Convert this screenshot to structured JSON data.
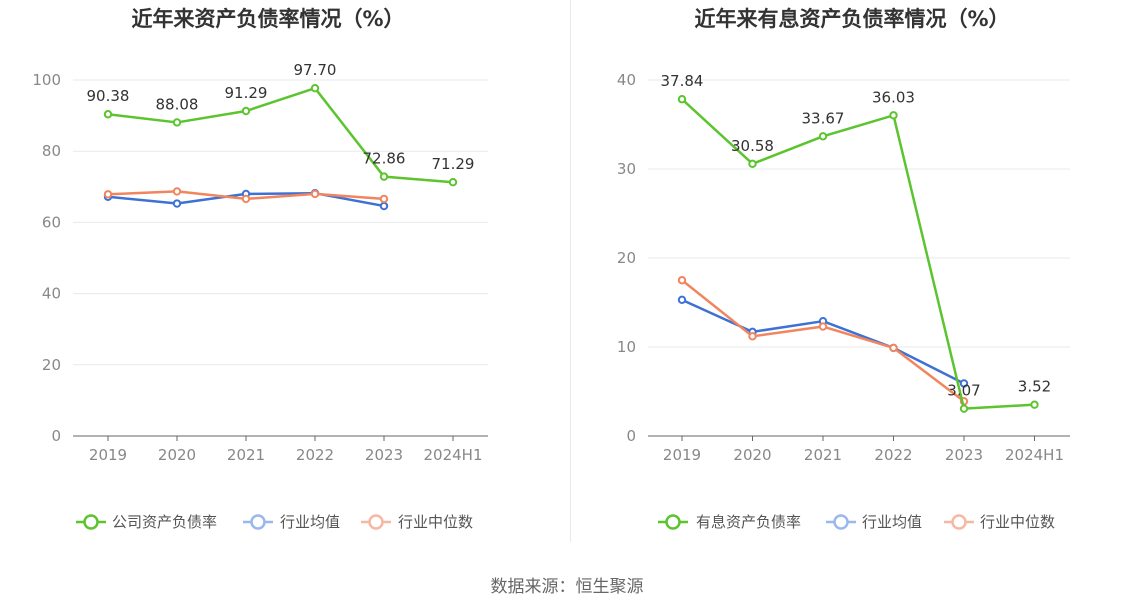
{
  "source": "数据来源：恒生聚源",
  "colors": {
    "main": "#5cc42e",
    "avg": "#3d71d4",
    "median": "#f0855e",
    "avg_legend": "#9ab8ee",
    "median_legend": "#f6b8a2"
  },
  "chart_data": [
    {
      "type": "line",
      "title": "近年来资产负债率情况（%）",
      "categories": [
        "2019",
        "2020",
        "2021",
        "2022",
        "2023",
        "2024H1"
      ],
      "ylim": [
        0,
        100
      ],
      "yticks": [
        "0",
        "20",
        "40",
        "60",
        "80",
        "100"
      ],
      "grid": true,
      "legend": "bottom",
      "series": [
        {
          "name": "公司资产负债率",
          "values": [
            90.38,
            88.08,
            91.29,
            97.7,
            72.86,
            71.29
          ],
          "labels": [
            "90.38",
            "88.08",
            "91.29",
            "97.70",
            "72.86",
            "71.29"
          ]
        },
        {
          "name": "行业均值",
          "values": [
            67.2,
            65.3,
            68.0,
            68.2,
            64.6,
            null
          ]
        },
        {
          "name": "行业中位数",
          "values": [
            67.9,
            68.7,
            66.6,
            68.0,
            66.6,
            null
          ]
        }
      ]
    },
    {
      "type": "line",
      "title": "近年来有息资产负债率情况（%）",
      "categories": [
        "2019",
        "2020",
        "2021",
        "2022",
        "2023",
        "2024H1"
      ],
      "ylim": [
        0,
        40
      ],
      "yticks": [
        "0",
        "10",
        "20",
        "30",
        "40"
      ],
      "grid": true,
      "legend": "bottom",
      "series": [
        {
          "name": "有息资产负债率",
          "values": [
            37.84,
            30.58,
            33.67,
            36.03,
            3.07,
            3.52
          ],
          "labels": [
            "37.84",
            "30.58",
            "33.67",
            "36.03",
            "3.07",
            "3.52"
          ]
        },
        {
          "name": "行业均值",
          "values": [
            15.3,
            11.7,
            12.9,
            9.9,
            5.9,
            null
          ]
        },
        {
          "name": "行业中位数",
          "values": [
            17.5,
            11.2,
            12.3,
            9.9,
            3.9,
            null
          ]
        }
      ]
    }
  ]
}
